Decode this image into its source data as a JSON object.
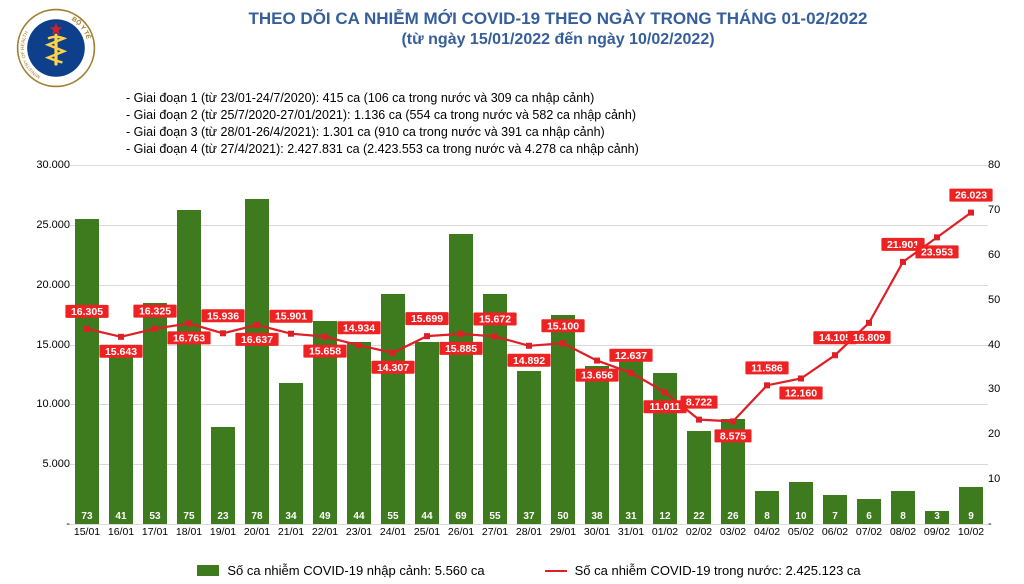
{
  "header": {
    "title_line1": "THEO DÕI CA NHIỄM MỚI COVID-19 THEO NGÀY TRONG THÁNG 01-02/2022",
    "title_line2": "(từ ngày 15/01/2022 đến ngày 10/02/2022)",
    "title_color": "#355e9b",
    "title_fontsize_1": 17,
    "title_fontsize_2": 16,
    "notes": [
      "- Giai đoạn 1 (từ 23/01-24/7/2020): 415 ca (106 ca trong nước và 309 ca nhập cảnh)",
      "- Giai đoạn 2 (từ 25/7/2020-27/01/2021): 1.136 ca (554 ca trong nước và 582 ca nhập cảnh)",
      "- Giai đoạn 3 (từ 28/01-26/4/2021): 1.301 ca (910 ca trong nước và 391 ca nhập cảnh)",
      "- Giai đoạn 4 (từ 27/4/2021): 2.427.831 ca (2.423.553 ca trong nước và 4.278 ca nhập cảnh)"
    ]
  },
  "logo": {
    "outer_text": "BỘ Y TẾ · MINISTRY OF HEALTH",
    "ring_color": "#a07c2c",
    "inner_color": "#0d3f8a",
    "snake_color": "#ffd24a",
    "star_color": "#d52027"
  },
  "chart": {
    "type": "bar+line",
    "bar_color": "#3e7a1e",
    "line_color": "#df1f26",
    "label_bg_color": "#df1f26",
    "grid_color": "#d9d9d9",
    "background_color": "#ffffff",
    "left_axis": {
      "min": 0,
      "max": 30000,
      "step": 5000,
      "tick_suffix": "."
    },
    "right_axis": {
      "min": 0,
      "max": 80,
      "step": 10
    },
    "categories": [
      "15/01",
      "16/01",
      "17/01",
      "18/01",
      "19/01",
      "20/01",
      "21/01",
      "22/01",
      "23/01",
      "24/01",
      "25/01",
      "26/01",
      "27/01",
      "28/01",
      "29/01",
      "30/01",
      "31/01",
      "01/02",
      "02/02",
      "03/02",
      "04/02",
      "05/02",
      "06/02",
      "07/02",
      "08/02",
      "09/02",
      "10/02"
    ],
    "bar_values": [
      73,
      41,
      53,
      75,
      23,
      78,
      34,
      49,
      44,
      55,
      44,
      69,
      55,
      37,
      50,
      38,
      31,
      12,
      22,
      26,
      8,
      10,
      7,
      6,
      8,
      3,
      9
    ],
    "bar_heights_vis": [
      25500,
      14200,
      18500,
      26200,
      8100,
      27200,
      11800,
      17000,
      15200,
      19200,
      15200,
      24200,
      19200,
      12800,
      17500,
      13200,
      13656,
      12637,
      7800,
      8800,
      2800,
      3500,
      2400,
      2100,
      2800,
      1100,
      3100
    ],
    "line_values": [
      16305,
      15643,
      16325,
      16763,
      15936,
      16637,
      15901,
      15658,
      14934,
      14307,
      15699,
      15885,
      15672,
      14892,
      15100,
      13656,
      12637,
      11011,
      8722,
      8575,
      11586,
      12160,
      14105,
      16809,
      21901,
      23953,
      26023
    ],
    "line_labels": [
      "16.305",
      "15.643",
      "16.325",
      "16.763",
      "15.936",
      "16.637",
      "15.901",
      "15.658",
      "14.934",
      "14.307",
      "15.699",
      "15.885",
      "15.672",
      "14.892",
      "15.100",
      "13.656",
      "12.637",
      "11.011",
      "8.722",
      "8.575",
      "11.586",
      "12.160",
      "14.105",
      "16.809",
      "21.901",
      "23.953",
      "26.023"
    ]
  },
  "legend": {
    "bar_text": "Số ca nhiễm COVID-19 nhập cảnh: 5.560 ca",
    "line_text": "Số ca nhiễm COVID-19 trong nước: 2.425.123 ca"
  }
}
